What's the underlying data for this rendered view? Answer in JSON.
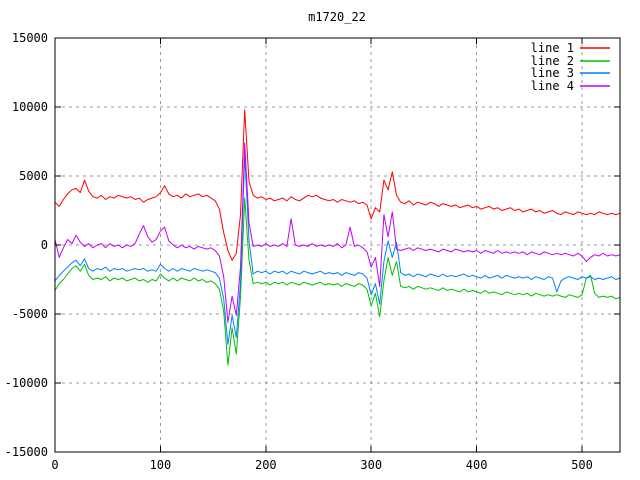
{
  "chart_data": {
    "type": "line",
    "title": "m1720_22",
    "xlabel": "",
    "ylabel": "",
    "xlim": [
      0,
      536
    ],
    "ylim": [
      -15000,
      15000
    ],
    "xticks": [
      0,
      100,
      200,
      300,
      400,
      500
    ],
    "yticks": [
      -15000,
      -10000,
      -5000,
      0,
      5000,
      10000,
      15000
    ],
    "grid": true,
    "legend_position": "top-right-inside",
    "x_start": 0,
    "x_step": 4,
    "series": [
      {
        "name": "line 1",
        "color": "#ff0000",
        "values": [
          3100,
          2800,
          3300,
          3700,
          4000,
          4100,
          3800,
          4700,
          3900,
          3500,
          3400,
          3600,
          3300,
          3500,
          3400,
          3600,
          3500,
          3400,
          3500,
          3300,
          3400,
          3100,
          3300,
          3400,
          3500,
          3800,
          4300,
          3700,
          3500,
          3600,
          3400,
          3700,
          3500,
          3600,
          3700,
          3500,
          3600,
          3400,
          3200,
          2600,
          900,
          -400,
          -1100,
          -600,
          2200,
          9800,
          4600,
          3600,
          3400,
          3500,
          3300,
          3400,
          3200,
          3300,
          3400,
          3200,
          3500,
          3300,
          3200,
          3400,
          3600,
          3500,
          3600,
          3400,
          3300,
          3200,
          3300,
          3100,
          3300,
          3200,
          3100,
          3200,
          3000,
          3100,
          2900,
          1900,
          2700,
          2400,
          4700,
          4000,
          5300,
          3600,
          3100,
          3000,
          3200,
          2900,
          3100,
          3000,
          2900,
          3100,
          3000,
          2800,
          3000,
          2900,
          2800,
          2900,
          2700,
          2800,
          2900,
          2700,
          2800,
          2600,
          2700,
          2800,
          2600,
          2700,
          2500,
          2600,
          2700,
          2500,
          2600,
          2400,
          2500,
          2600,
          2400,
          2500,
          2300,
          2400,
          2500,
          2300,
          2200,
          2400,
          2300,
          2200,
          2400,
          2300,
          2200,
          2300,
          2200,
          2400,
          2300,
          2200,
          2300,
          2200,
          2300
        ]
      },
      {
        "name": "line 2",
        "color": "#00c000",
        "values": [
          -3300,
          -2800,
          -2500,
          -2100,
          -1700,
          -1500,
          -1900,
          -1400,
          -2200,
          -2500,
          -2400,
          -2500,
          -2300,
          -2600,
          -2400,
          -2500,
          -2400,
          -2600,
          -2500,
          -2400,
          -2600,
          -2500,
          -2700,
          -2500,
          -2600,
          -2100,
          -2400,
          -2600,
          -2400,
          -2600,
          -2400,
          -2500,
          -2600,
          -2400,
          -2600,
          -2500,
          -2700,
          -2600,
          -2800,
          -3200,
          -4800,
          -8700,
          -6000,
          -7900,
          -3800,
          3400,
          -1100,
          -2800,
          -2700,
          -2800,
          -2700,
          -2900,
          -2700,
          -2800,
          -2700,
          -2900,
          -2700,
          -2800,
          -2900,
          -2700,
          -2800,
          -2900,
          -2800,
          -2700,
          -2900,
          -2800,
          -2900,
          -2800,
          -3000,
          -2800,
          -2900,
          -3000,
          -2800,
          -2900,
          -3200,
          -4400,
          -3500,
          -5200,
          -2600,
          -900,
          -2200,
          -1200,
          -3000,
          -3100,
          -3000,
          -3200,
          -3000,
          -3100,
          -3200,
          -3100,
          -3200,
          -3300,
          -3100,
          -3300,
          -3200,
          -3300,
          -3400,
          -3200,
          -3400,
          -3300,
          -3400,
          -3500,
          -3300,
          -3500,
          -3400,
          -3500,
          -3600,
          -3400,
          -3500,
          -3600,
          -3500,
          -3600,
          -3500,
          -3700,
          -3500,
          -3600,
          -3700,
          -3600,
          -3700,
          -3600,
          -3700,
          -3800,
          -3600,
          -3700,
          -3800,
          -3600,
          -2400,
          -2200,
          -3500,
          -3800,
          -3700,
          -3800,
          -3700,
          -3900,
          -3800
        ]
      },
      {
        "name": "line 3",
        "color": "#0080ff",
        "values": [
          -2600,
          -2200,
          -1900,
          -1600,
          -1300,
          -1100,
          -1500,
          -1000,
          -1700,
          -1900,
          -1700,
          -1800,
          -1600,
          -1900,
          -1700,
          -1800,
          -1700,
          -1900,
          -1800,
          -1700,
          -1800,
          -1700,
          -1900,
          -1800,
          -1900,
          -1400,
          -1700,
          -1900,
          -1700,
          -1900,
          -1700,
          -1800,
          -1900,
          -1700,
          -1800,
          -1900,
          -1800,
          -1900,
          -2000,
          -2400,
          -3900,
          -7200,
          -5100,
          -6700,
          -2800,
          6600,
          300,
          -2100,
          -1900,
          -2000,
          -1900,
          -2100,
          -1900,
          -2000,
          -1900,
          -2100,
          -1900,
          -2000,
          -2100,
          -1900,
          -2000,
          -2100,
          -2000,
          -1900,
          -2100,
          -2000,
          -2100,
          -2000,
          -2200,
          -2000,
          -2100,
          -2200,
          -2000,
          -2100,
          -2400,
          -3600,
          -2800,
          -4300,
          -1200,
          300,
          -900,
          200,
          -2000,
          -2200,
          -2100,
          -2300,
          -2100,
          -2200,
          -2300,
          -2100,
          -2200,
          -2300,
          -2100,
          -2300,
          -2200,
          -2300,
          -2200,
          -2100,
          -2300,
          -2200,
          -2300,
          -2400,
          -2200,
          -2400,
          -2300,
          -2200,
          -2400,
          -2200,
          -2300,
          -2400,
          -2300,
          -2400,
          -2300,
          -2500,
          -2300,
          -2400,
          -2500,
          -2300,
          -2400,
          -3400,
          -2600,
          -2400,
          -2300,
          -2400,
          -2500,
          -2300,
          -2400,
          -2300,
          -2500,
          -2400,
          -2500,
          -2400,
          -2300,
          -2500,
          -2400
        ]
      },
      {
        "name": "line 4",
        "color": "#c000ff",
        "values": [
          400,
          -900,
          -200,
          400,
          100,
          700,
          200,
          -100,
          100,
          -200,
          0,
          100,
          -200,
          100,
          -100,
          0,
          -200,
          0,
          -100,
          100,
          800,
          1400,
          600,
          200,
          400,
          1000,
          1300,
          300,
          0,
          -200,
          0,
          -200,
          -100,
          -300,
          -100,
          -200,
          -300,
          -200,
          -400,
          -800,
          -2300,
          -5600,
          -3700,
          -5100,
          -1600,
          7400,
          1600,
          -100,
          0,
          -100,
          100,
          -100,
          0,
          -100,
          100,
          -100,
          1900,
          0,
          -100,
          0,
          -100,
          100,
          -100,
          0,
          -100,
          0,
          -100,
          100,
          -200,
          0,
          1300,
          -100,
          0,
          -200,
          -500,
          -1600,
          -900,
          -3000,
          2200,
          600,
          2400,
          -300,
          -400,
          -300,
          -200,
          -400,
          -200,
          -300,
          -400,
          -300,
          -400,
          -500,
          -300,
          -400,
          -500,
          -300,
          -400,
          -500,
          -400,
          -500,
          -400,
          -600,
          -400,
          -500,
          -600,
          -400,
          -600,
          -500,
          -600,
          -500,
          -600,
          -500,
          -700,
          -500,
          -600,
          -700,
          -500,
          -600,
          -700,
          -600,
          -700,
          -600,
          -700,
          -800,
          -600,
          -800,
          -1200,
          -900,
          -700,
          -800,
          -600,
          -800,
          -700,
          -800,
          -700
        ]
      }
    ]
  },
  "colors": {
    "background": "#ffffff",
    "border": "#000000",
    "grid": "#999999",
    "text": "#000000"
  }
}
